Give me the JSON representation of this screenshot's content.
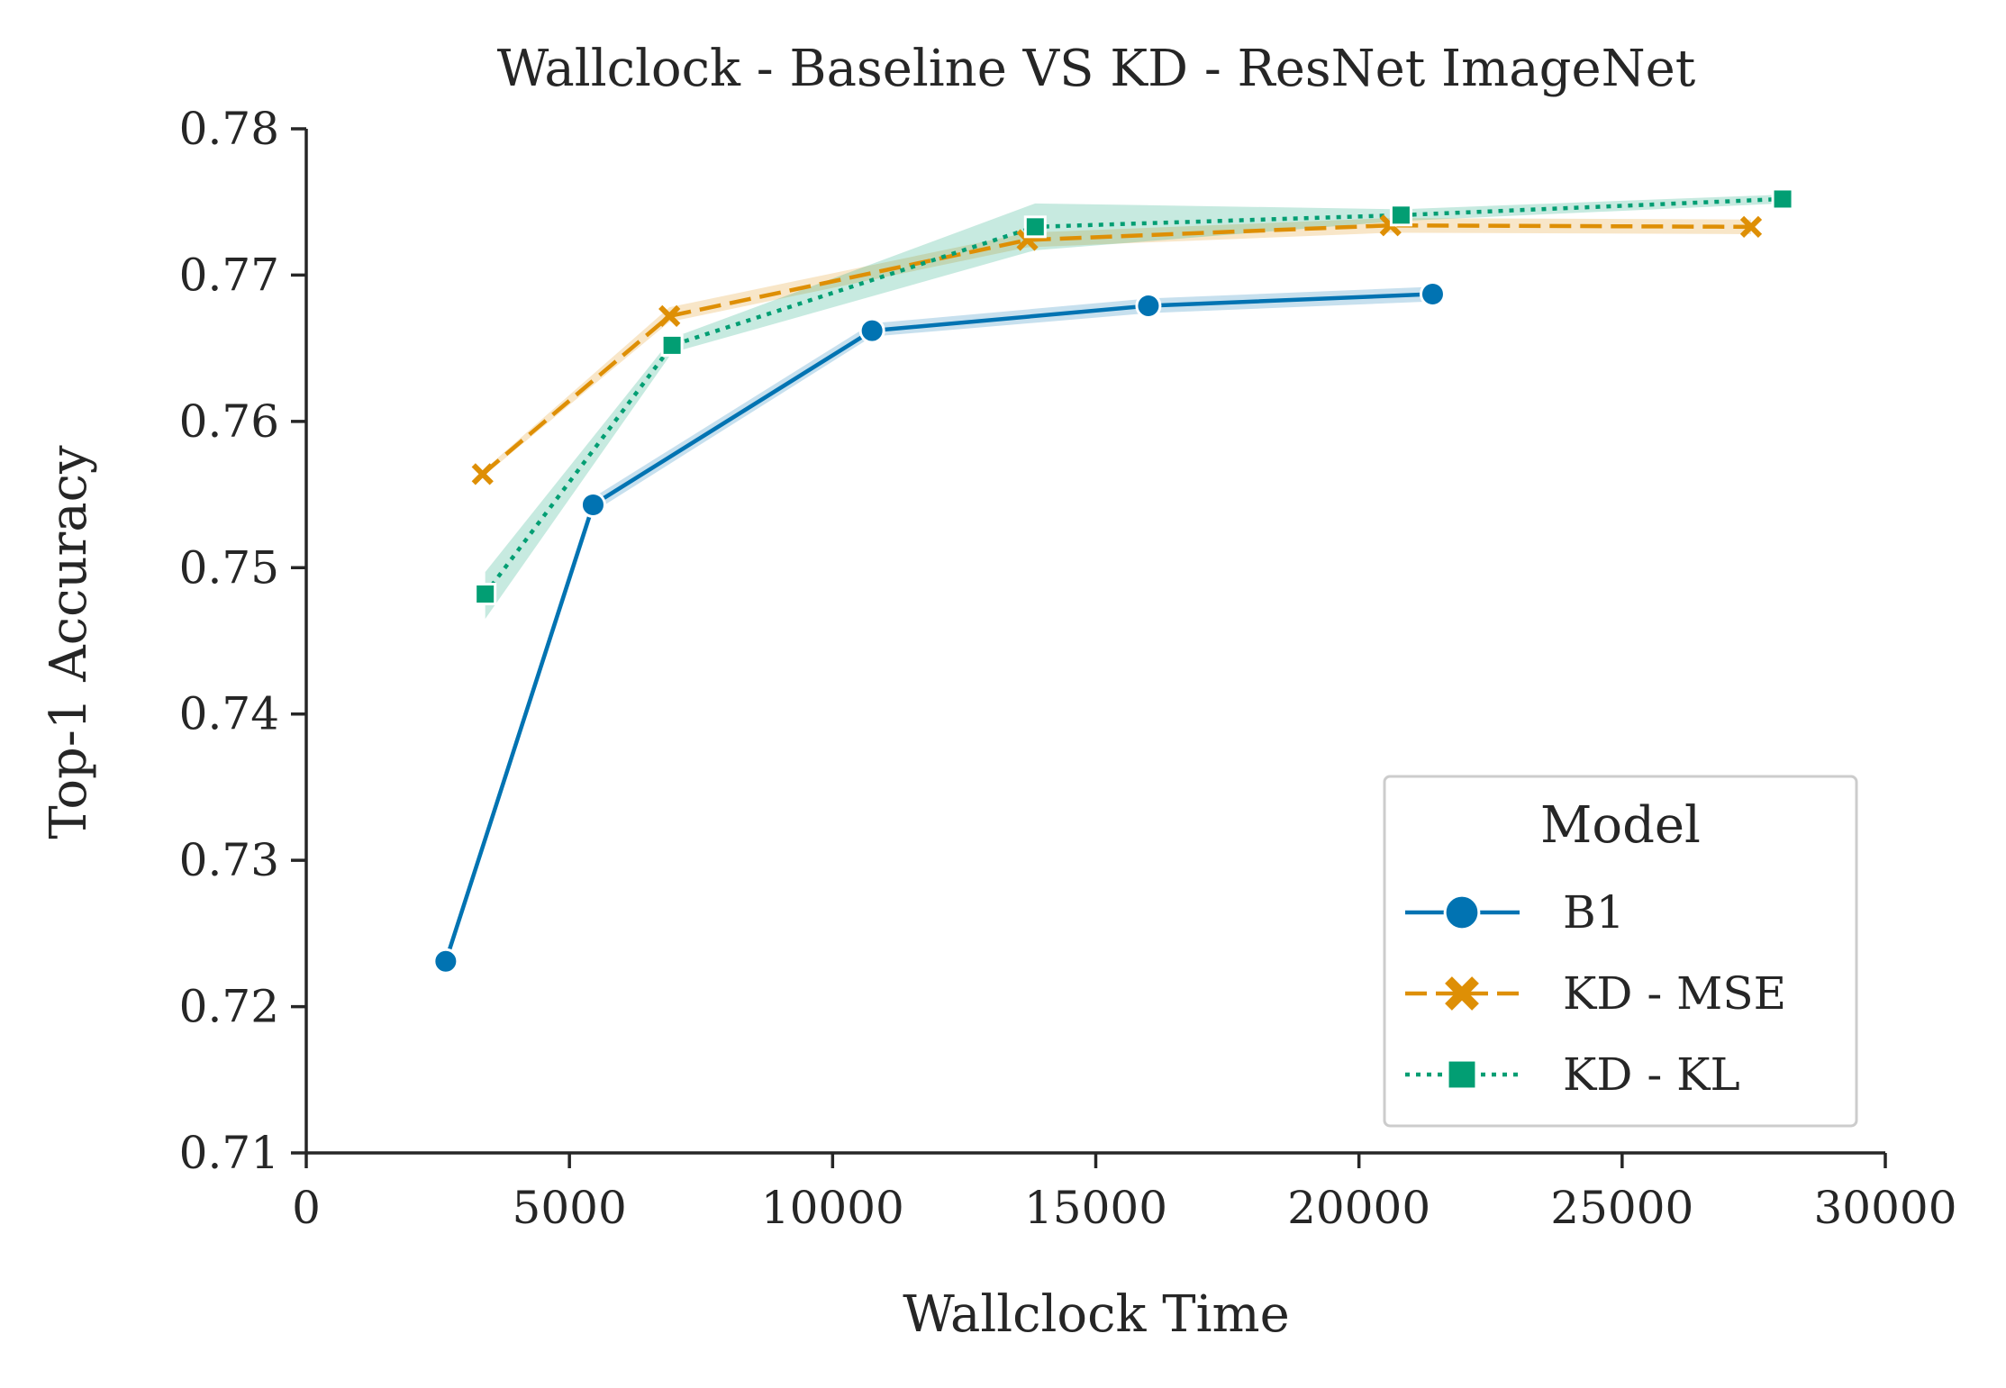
{
  "chart_data": {
    "type": "line",
    "title": "Wallclock - Baseline VS KD - ResNet ImageNet",
    "xlabel": "Wallclock Time",
    "ylabel": "Top-1 Accuracy",
    "xlim": [
      0,
      30000
    ],
    "ylim": [
      0.71,
      0.78
    ],
    "xticks": [
      0,
      5000,
      10000,
      15000,
      20000,
      25000,
      30000
    ],
    "xtick_labels": [
      "0",
      "5000",
      "10000",
      "15000",
      "20000",
      "25000",
      "30000"
    ],
    "yticks": [
      0.71,
      0.72,
      0.73,
      0.74,
      0.75,
      0.76,
      0.77,
      0.78
    ],
    "ytick_labels": [
      "0.71",
      "0.72",
      "0.73",
      "0.74",
      "0.75",
      "0.76",
      "0.77",
      "0.78"
    ],
    "grid": false,
    "legend": {
      "title": "Model",
      "position": "bottom-right"
    },
    "series": [
      {
        "name": "B1",
        "color": "#0173b2",
        "marker": "circle",
        "linestyle": "solid",
        "x": [
          2650,
          5450,
          10750,
          16000,
          21400
        ],
        "y": [
          0.7231,
          0.7543,
          0.7662,
          0.7679,
          0.7687
        ],
        "ci_low": [
          0.7227,
          0.7538,
          0.7658,
          0.7674,
          0.7682
        ],
        "ci_high": [
          0.7235,
          0.7548,
          0.7667,
          0.7684,
          0.7692
        ]
      },
      {
        "name": "KD - MSE",
        "color": "#de8f05",
        "marker": "x",
        "linestyle": "dashed",
        "x": [
          3350,
          6900,
          13700,
          20600,
          27450
        ],
        "y": [
          0.7564,
          0.7672,
          0.7724,
          0.7734,
          0.7733
        ],
        "ci_low": [
          0.7562,
          0.7668,
          0.7719,
          0.7729,
          0.7728
        ],
        "ci_high": [
          0.7566,
          0.7678,
          0.7729,
          0.7739,
          0.7738
        ]
      },
      {
        "name": "KD - KL",
        "color": "#029e73",
        "marker": "square",
        "linestyle": "dotted",
        "x": [
          3400,
          6950,
          13850,
          20800,
          28050
        ],
        "y": [
          0.7482,
          0.7652,
          0.7733,
          0.7741,
          0.7752
        ],
        "ci_low": [
          0.7465,
          0.7647,
          0.7717,
          0.7737,
          0.7749
        ],
        "ci_high": [
          0.7497,
          0.7657,
          0.7749,
          0.7745,
          0.7755
        ]
      }
    ]
  }
}
